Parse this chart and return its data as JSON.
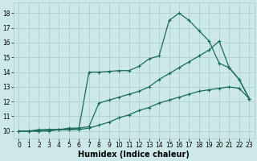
{
  "xlabel": "Humidex (Indice chaleur)",
  "bg_color": "#cce8e8",
  "grid_color": "#aacccc",
  "line_color": "#1a6b5a",
  "xlim": [
    -0.5,
    23.5
  ],
  "ylim": [
    9.5,
    18.7
  ],
  "xticks": [
    0,
    1,
    2,
    3,
    4,
    5,
    6,
    7,
    8,
    9,
    10,
    11,
    12,
    13,
    14,
    15,
    16,
    17,
    18,
    19,
    20,
    21,
    22,
    23
  ],
  "yticks": [
    10,
    11,
    12,
    13,
    14,
    15,
    16,
    17,
    18
  ],
  "series1_x": [
    0,
    1,
    2,
    3,
    4,
    5,
    6,
    7,
    8,
    9,
    10,
    11,
    12,
    13,
    14,
    15,
    16,
    17,
    18,
    19,
    20,
    21,
    22,
    23
  ],
  "series1_y": [
    10.0,
    10.0,
    10.1,
    10.1,
    10.1,
    10.2,
    10.2,
    14.0,
    14.0,
    14.05,
    14.1,
    14.1,
    14.4,
    14.9,
    15.1,
    17.5,
    18.0,
    17.5,
    16.8,
    16.1,
    14.6,
    14.3,
    13.5,
    12.2
  ],
  "series2_x": [
    0,
    1,
    2,
    3,
    4,
    5,
    6,
    7,
    8,
    9,
    10,
    11,
    12,
    13,
    14,
    15,
    16,
    17,
    18,
    19,
    20,
    21,
    22,
    23
  ],
  "series2_y": [
    10.0,
    10.0,
    10.0,
    10.1,
    10.1,
    10.1,
    10.2,
    10.3,
    11.9,
    12.1,
    12.3,
    12.5,
    12.7,
    13.0,
    13.5,
    13.9,
    14.3,
    14.7,
    15.1,
    15.5,
    16.1,
    14.3,
    13.5,
    12.2
  ],
  "series3_x": [
    0,
    1,
    2,
    3,
    4,
    5,
    6,
    7,
    8,
    9,
    10,
    11,
    12,
    13,
    14,
    15,
    16,
    17,
    18,
    19,
    20,
    21,
    22,
    23
  ],
  "series3_y": [
    10.0,
    10.0,
    10.0,
    10.0,
    10.1,
    10.1,
    10.1,
    10.2,
    10.4,
    10.6,
    10.9,
    11.1,
    11.4,
    11.6,
    11.9,
    12.1,
    12.3,
    12.5,
    12.7,
    12.8,
    12.9,
    13.0,
    12.9,
    12.2
  ],
  "marker": "+",
  "markersize": 3,
  "linewidth": 0.9,
  "xlabel_fontsize": 7,
  "tick_fontsize": 5.5
}
